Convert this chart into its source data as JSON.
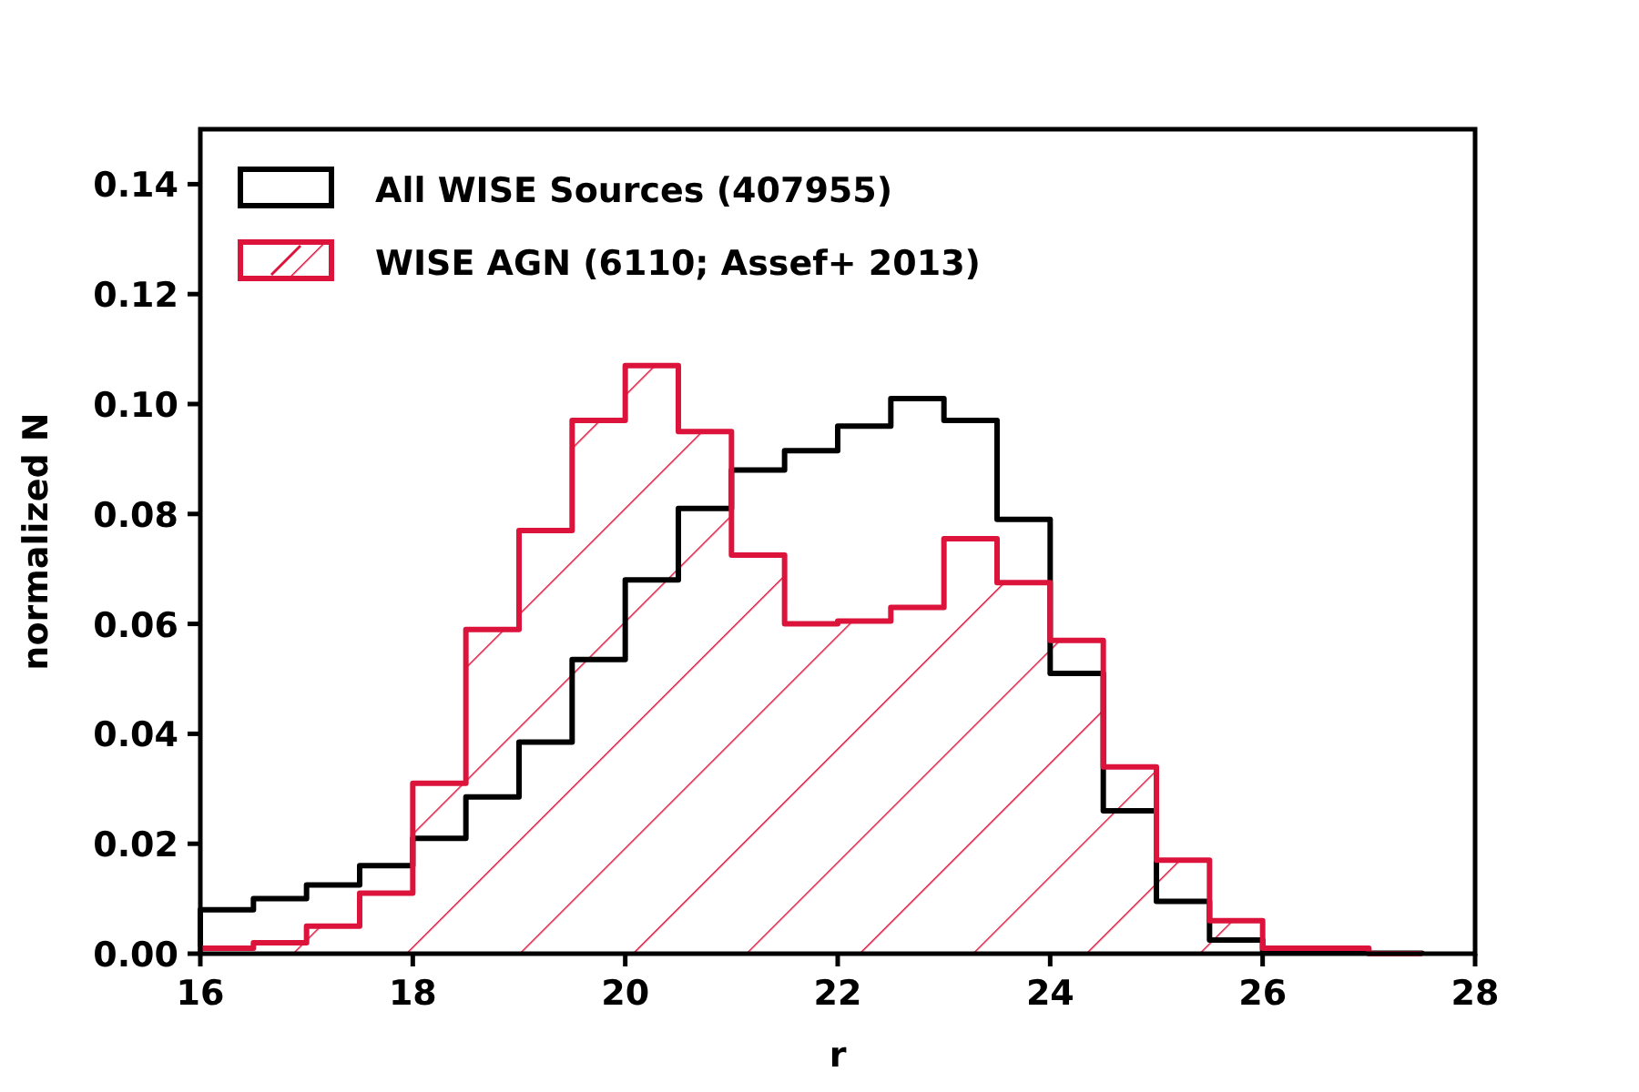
{
  "chart_data": {
    "type": "histogram",
    "xlabel": "r",
    "ylabel": "normalized N",
    "bins": [
      16,
      16.5,
      17,
      17.5,
      18,
      18.5,
      19,
      19.5,
      20,
      20.5,
      21,
      21.5,
      22,
      22.5,
      23,
      23.5,
      24,
      24.5,
      25,
      25.5,
      26,
      26.5,
      27,
      27.5
    ],
    "series": [
      {
        "name": "All WISE Sources (407955)",
        "color": "#000000",
        "values": [
          0.008,
          0.01,
          0.0125,
          0.016,
          0.021,
          0.0285,
          0.0385,
          0.0535,
          0.068,
          0.081,
          0.088,
          0.0915,
          0.096,
          0.101,
          0.097,
          0.079,
          0.051,
          0.026,
          0.0095,
          0.0025,
          0.0005,
          0.0003,
          0.0001
        ]
      },
      {
        "name": "WISE AGN (6110; Assef+ 2013)",
        "color": "#dc143c",
        "values": [
          0.001,
          0.002,
          0.005,
          0.011,
          0.031,
          0.059,
          0.077,
          0.097,
          0.107,
          0.095,
          0.0725,
          0.06,
          0.0605,
          0.063,
          0.0755,
          0.0675,
          0.057,
          0.034,
          0.017,
          0.006,
          0.001,
          0.001,
          0
        ]
      }
    ],
    "xlim": [
      16,
      28
    ],
    "xticks": [
      16,
      18,
      20,
      22,
      24,
      26,
      28
    ],
    "ylim": [
      0,
      0.15
    ],
    "yticks": [
      {
        "value": 0,
        "label": "0.00"
      },
      {
        "value": 0.02,
        "label": "0.02"
      },
      {
        "value": 0.04,
        "label": "0.04"
      },
      {
        "value": 0.06,
        "label": "0.06"
      },
      {
        "value": 0.08,
        "label": "0.08"
      },
      {
        "value": 0.1,
        "label": "0.10"
      },
      {
        "value": 0.12,
        "label": "0.12"
      },
      {
        "value": 0.14,
        "label": "0.14"
      }
    ],
    "legend": "top left"
  }
}
